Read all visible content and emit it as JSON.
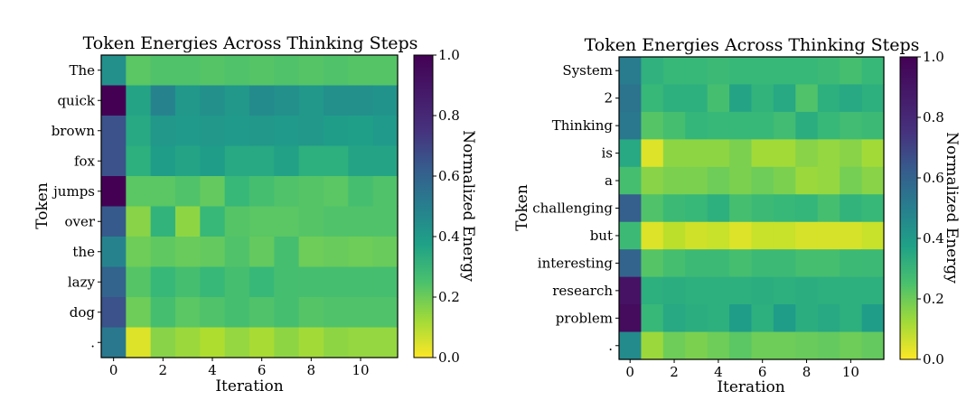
{
  "chart_data": [
    {
      "type": "heatmap",
      "title": "Token Energies Across Thinking Steps",
      "xlabel": "Iteration",
      "ylabel": "Token",
      "x_ticks": [
        0,
        2,
        4,
        6,
        8,
        10
      ],
      "columns": 12,
      "rows": [
        "The",
        "quick",
        "brown",
        "fox",
        "jumps",
        "over",
        "the",
        "lazy",
        "dog",
        "."
      ],
      "colorbar": {
        "label": "Normalized Energy",
        "ticks": [
          "0.0",
          "0.2",
          "0.4",
          "0.6",
          "0.8",
          "1.0"
        ],
        "range": [
          0,
          1
        ]
      },
      "values": [
        [
          0.5,
          0.26,
          0.28,
          0.28,
          0.27,
          0.28,
          0.27,
          0.28,
          0.27,
          0.28,
          0.27,
          0.27
        ],
        [
          1.0,
          0.42,
          0.55,
          0.47,
          0.5,
          0.47,
          0.52,
          0.5,
          0.47,
          0.5,
          0.5,
          0.49
        ],
        [
          0.75,
          0.4,
          0.47,
          0.46,
          0.47,
          0.46,
          0.47,
          0.46,
          0.47,
          0.45,
          0.44,
          0.46
        ],
        [
          0.75,
          0.37,
          0.45,
          0.42,
          0.45,
          0.4,
          0.4,
          0.43,
          0.37,
          0.37,
          0.42,
          0.42
        ],
        [
          1.0,
          0.26,
          0.26,
          0.28,
          0.24,
          0.33,
          0.3,
          0.28,
          0.27,
          0.26,
          0.3,
          0.28
        ],
        [
          0.72,
          0.18,
          0.35,
          0.17,
          0.33,
          0.27,
          0.26,
          0.26,
          0.27,
          0.28,
          0.28,
          0.28
        ],
        [
          0.55,
          0.22,
          0.25,
          0.23,
          0.24,
          0.28,
          0.24,
          0.3,
          0.22,
          0.23,
          0.22,
          0.23
        ],
        [
          0.68,
          0.27,
          0.33,
          0.3,
          0.33,
          0.3,
          0.33,
          0.3,
          0.3,
          0.3,
          0.3,
          0.3
        ],
        [
          0.75,
          0.22,
          0.3,
          0.26,
          0.28,
          0.3,
          0.28,
          0.3,
          0.27,
          0.28,
          0.28,
          0.28
        ],
        [
          0.6,
          0.05,
          0.18,
          0.15,
          0.12,
          0.16,
          0.13,
          0.17,
          0.14,
          0.17,
          0.16,
          0.16
        ]
      ]
    },
    {
      "type": "heatmap",
      "title": "Token Energies Across Thinking Steps",
      "xlabel": "Iteration",
      "ylabel": "Token",
      "x_ticks": [
        0,
        2,
        4,
        6,
        8,
        10
      ],
      "columns": 12,
      "rows": [
        "System",
        "2",
        "Thinking",
        "is",
        "a",
        "challenging",
        "but",
        "interesting",
        "research",
        "problem",
        "."
      ],
      "colorbar": {
        "label": "Normalized Energy",
        "ticks": [
          "0.0",
          "0.2",
          "0.4",
          "0.6",
          "0.8",
          "1.0"
        ],
        "range": [
          0,
          1
        ]
      },
      "values": [
        [
          0.58,
          0.36,
          0.33,
          0.33,
          0.32,
          0.33,
          0.33,
          0.33,
          0.33,
          0.32,
          0.3,
          0.33
        ],
        [
          0.62,
          0.33,
          0.37,
          0.37,
          0.3,
          0.42,
          0.35,
          0.4,
          0.28,
          0.37,
          0.4,
          0.37
        ],
        [
          0.6,
          0.27,
          0.3,
          0.34,
          0.33,
          0.33,
          0.33,
          0.31,
          0.38,
          0.33,
          0.31,
          0.32
        ],
        [
          0.4,
          0.05,
          0.17,
          0.17,
          0.17,
          0.2,
          0.14,
          0.14,
          0.18,
          0.16,
          0.18,
          0.14
        ],
        [
          0.3,
          0.18,
          0.2,
          0.2,
          0.22,
          0.2,
          0.22,
          0.2,
          0.15,
          0.16,
          0.21,
          0.18
        ],
        [
          0.7,
          0.28,
          0.32,
          0.33,
          0.37,
          0.3,
          0.32,
          0.33,
          0.34,
          0.3,
          0.35,
          0.33
        ],
        [
          0.32,
          0.05,
          0.1,
          0.07,
          0.08,
          0.05,
          0.08,
          0.08,
          0.06,
          0.06,
          0.06,
          0.08
        ],
        [
          0.68,
          0.27,
          0.3,
          0.32,
          0.32,
          0.3,
          0.32,
          0.32,
          0.3,
          0.3,
          0.32,
          0.32
        ],
        [
          0.95,
          0.37,
          0.38,
          0.37,
          0.37,
          0.37,
          0.38,
          0.37,
          0.38,
          0.37,
          0.37,
          0.37
        ],
        [
          0.97,
          0.33,
          0.4,
          0.38,
          0.37,
          0.45,
          0.37,
          0.45,
          0.38,
          0.4,
          0.37,
          0.45
        ],
        [
          0.52,
          0.15,
          0.22,
          0.2,
          0.22,
          0.26,
          0.22,
          0.22,
          0.23,
          0.24,
          0.22,
          0.24
        ]
      ]
    }
  ]
}
